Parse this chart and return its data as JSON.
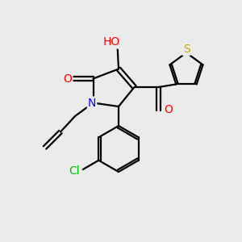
{
  "bg_color": "#ebebeb",
  "bond_color": "#000000",
  "bond_width": 1.6,
  "atom_colors": {
    "O": "#ff0000",
    "N": "#0000ff",
    "S": "#ccaa00",
    "Cl": "#00bb00",
    "H": "#888888",
    "C": "#000000"
  },
  "font_size": 10,
  "fig_size": [
    3.0,
    3.0
  ],
  "dpi": 100
}
